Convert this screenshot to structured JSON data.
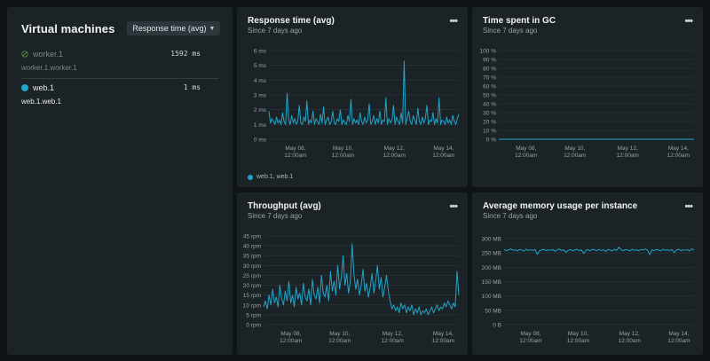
{
  "vm": {
    "title": "Virtual machines",
    "metric_select": "Response time (avg)",
    "rows": [
      {
        "name": "worker.1",
        "sub": "worker.1.worker.1",
        "value": "1592 ms",
        "status_icon": "not-allowed-icon"
      },
      {
        "name": "web.1",
        "sub": "web.1.web.1",
        "value": "1 ms",
        "status_icon": "status-dot-icon"
      }
    ]
  },
  "colors": {
    "series": "#20a4c9",
    "grid": "#2e383d",
    "axis_text": "#9aa2a6"
  },
  "charts": [
    {
      "title": "Response time (avg)",
      "subtitle": "Since 7 days ago",
      "legend": "web.1, web.1",
      "chart_data": {
        "type": "line",
        "yticks": [
          "0 ms",
          "1 ms",
          "2 ms",
          "3 ms",
          "4 ms",
          "5 ms",
          "6 ms"
        ],
        "ylim": [
          0,
          6
        ],
        "xticks": [
          [
            "May 08,",
            "12:00am"
          ],
          [
            "May 10,",
            "12:00am"
          ],
          [
            "May 12,",
            "12:00am"
          ],
          [
            "May 14,",
            "12:00am"
          ]
        ],
        "series": [
          {
            "values": [
              1.9,
              1.1,
              1.4,
              1.2,
              1.0,
              1.5,
              1.1,
              1.3,
              1.0,
              1.8,
              1.2,
              1.0,
              3.1,
              1.3,
              1.0,
              1.6,
              1.1,
              1.4,
              1.0,
              1.2,
              2.3,
              1.1,
              1.0,
              1.5,
              1.2,
              2.6,
              1.0,
              1.3,
              1.1,
              1.9,
              1.0,
              1.4,
              1.2,
              1.0,
              1.7,
              1.1,
              2.2,
              1.0,
              1.3,
              1.5,
              1.0,
              1.2,
              1.9,
              1.1,
              1.0,
              1.4,
              1.2,
              2.0,
              1.0,
              1.3,
              1.1,
              1.0,
              1.6,
              1.2,
              2.7,
              1.0,
              1.4,
              1.1,
              1.3,
              1.0,
              1.8,
              1.2,
              1.0,
              1.5,
              1.1,
              1.3,
              2.4,
              1.0,
              1.2,
              1.6,
              1.0,
              1.4,
              1.1,
              1.9,
              1.0,
              1.3,
              1.2,
              2.8,
              1.0,
              1.4,
              1.1,
              1.3,
              2.3,
              1.0,
              1.5,
              1.2,
              1.0,
              1.8,
              1.1,
              5.3,
              1.0,
              1.4,
              1.9,
              1.2,
              1.0,
              1.6,
              1.3,
              1.0,
              2.1,
              1.2,
              1.0,
              1.5,
              1.1,
              1.4,
              2.3,
              1.0,
              1.3,
              1.2,
              1.8,
              1.0,
              1.4,
              1.1,
              2.8,
              1.0,
              1.3,
              1.2,
              1.0,
              1.5,
              1.1,
              1.3,
              1.0,
              1.6,
              1.2,
              1.0,
              1.4,
              1.7
            ]
          }
        ]
      }
    },
    {
      "title": "Time spent in GC",
      "subtitle": "Since 7 days ago",
      "legend": "",
      "chart_data": {
        "type": "line",
        "yticks": [
          "0 %",
          "10 %",
          "20 %",
          "30 %",
          "40 %",
          "50 %",
          "60 %",
          "70 %",
          "80 %",
          "90 %",
          "100 %"
        ],
        "ylim": [
          0,
          100
        ],
        "xticks": [
          [
            "May 08,",
            "12:00am"
          ],
          [
            "May 10,",
            "12:00am"
          ],
          [
            "May 12,",
            "12:00am"
          ],
          [
            "May 14,",
            "12:00am"
          ]
        ],
        "series": [
          {
            "values": [
              0,
              0,
              0,
              0,
              0,
              0,
              0,
              0,
              0,
              0,
              0,
              0,
              0,
              0,
              0,
              0,
              0,
              0,
              0,
              0
            ]
          }
        ]
      }
    },
    {
      "title": "Throughput (avg)",
      "subtitle": "Since 7 days ago",
      "legend": "",
      "chart_data": {
        "type": "line",
        "yticks": [
          "0 rpm",
          "5 rpm",
          "10 rpm",
          "15 rpm",
          "20 rpm",
          "25 rpm",
          "30 rpm",
          "35 rpm",
          "40 rpm",
          "45 rpm"
        ],
        "ylim": [
          0,
          45
        ],
        "xticks": [
          [
            "May 08,",
            "12:00am"
          ],
          [
            "May 10,",
            "12:00am"
          ],
          [
            "May 12,",
            "12:00am"
          ],
          [
            "May 14,",
            "12:00am"
          ]
        ],
        "series": [
          {
            "values": [
              9,
              12,
              8,
              15,
              10,
              18,
              11,
              14,
              9,
              20,
              13,
              10,
              17,
              12,
              22,
              11,
              15,
              9,
              19,
              13,
              16,
              10,
              21,
              14,
              12,
              18,
              10,
              23,
              15,
              13,
              19,
              11,
              25,
              16,
              14,
              20,
              12,
              27,
              17,
              22,
              15,
              30,
              18,
              24,
              35,
              20,
              26,
              16,
              22,
              41,
              25,
              18,
              23,
              15,
              20,
              28,
              17,
              21,
              14,
              19,
              26,
              16,
              22,
              30,
              18,
              24,
              14,
              19,
              25,
              17,
              12,
              8,
              10,
              7,
              9,
              6,
              11,
              8,
              10,
              6,
              9,
              7,
              10,
              5,
              8,
              6,
              9,
              5,
              7,
              6,
              8,
              5,
              7,
              9,
              6,
              8,
              10,
              7,
              9,
              8,
              11,
              9,
              12,
              10,
              8,
              11,
              9,
              27,
              15
            ]
          }
        ]
      }
    },
    {
      "title": "Average memory usage per instance",
      "subtitle": "Since 7 days ago",
      "legend": "",
      "chart_data": {
        "type": "line",
        "yticks": [
          "0 B",
          "50 MB",
          "100 MB",
          "150 MB",
          "200 MB",
          "250 MB",
          "300 MB"
        ],
        "ylim": [
          0,
          300
        ],
        "xticks": [
          [
            "May 08,",
            "12:00am"
          ],
          [
            "May 10,",
            "12:00am"
          ],
          [
            "May 12,",
            "12:00am"
          ],
          [
            "May 14,",
            "12:00am"
          ]
        ],
        "series": [
          {
            "values": [
              262,
              258,
              260,
              264,
              259,
              261,
              257,
              262,
              260,
              256,
              263,
              259,
              261,
              258,
              262,
              245,
              257,
              260,
              263,
              258,
              261,
              259,
              262,
              256,
              260,
              264,
              258,
              261,
              252,
              259,
              262,
              257,
              260,
              263,
              258,
              261,
              248,
              259,
              262,
              257,
              263,
              260,
              258,
              262,
              259,
              261,
              255,
              262,
              260,
              257,
              263,
              259,
              270,
              261,
              258,
              262,
              260,
              257,
              263,
              259,
              261,
              258,
              262,
              260,
              264,
              259,
              244,
              261,
              258,
              262,
              260,
              257,
              263,
              259,
              261,
              258,
              262,
              251,
              260,
              263,
              258,
              261,
              259,
              262,
              257,
              264,
              260
            ]
          }
        ]
      }
    }
  ]
}
